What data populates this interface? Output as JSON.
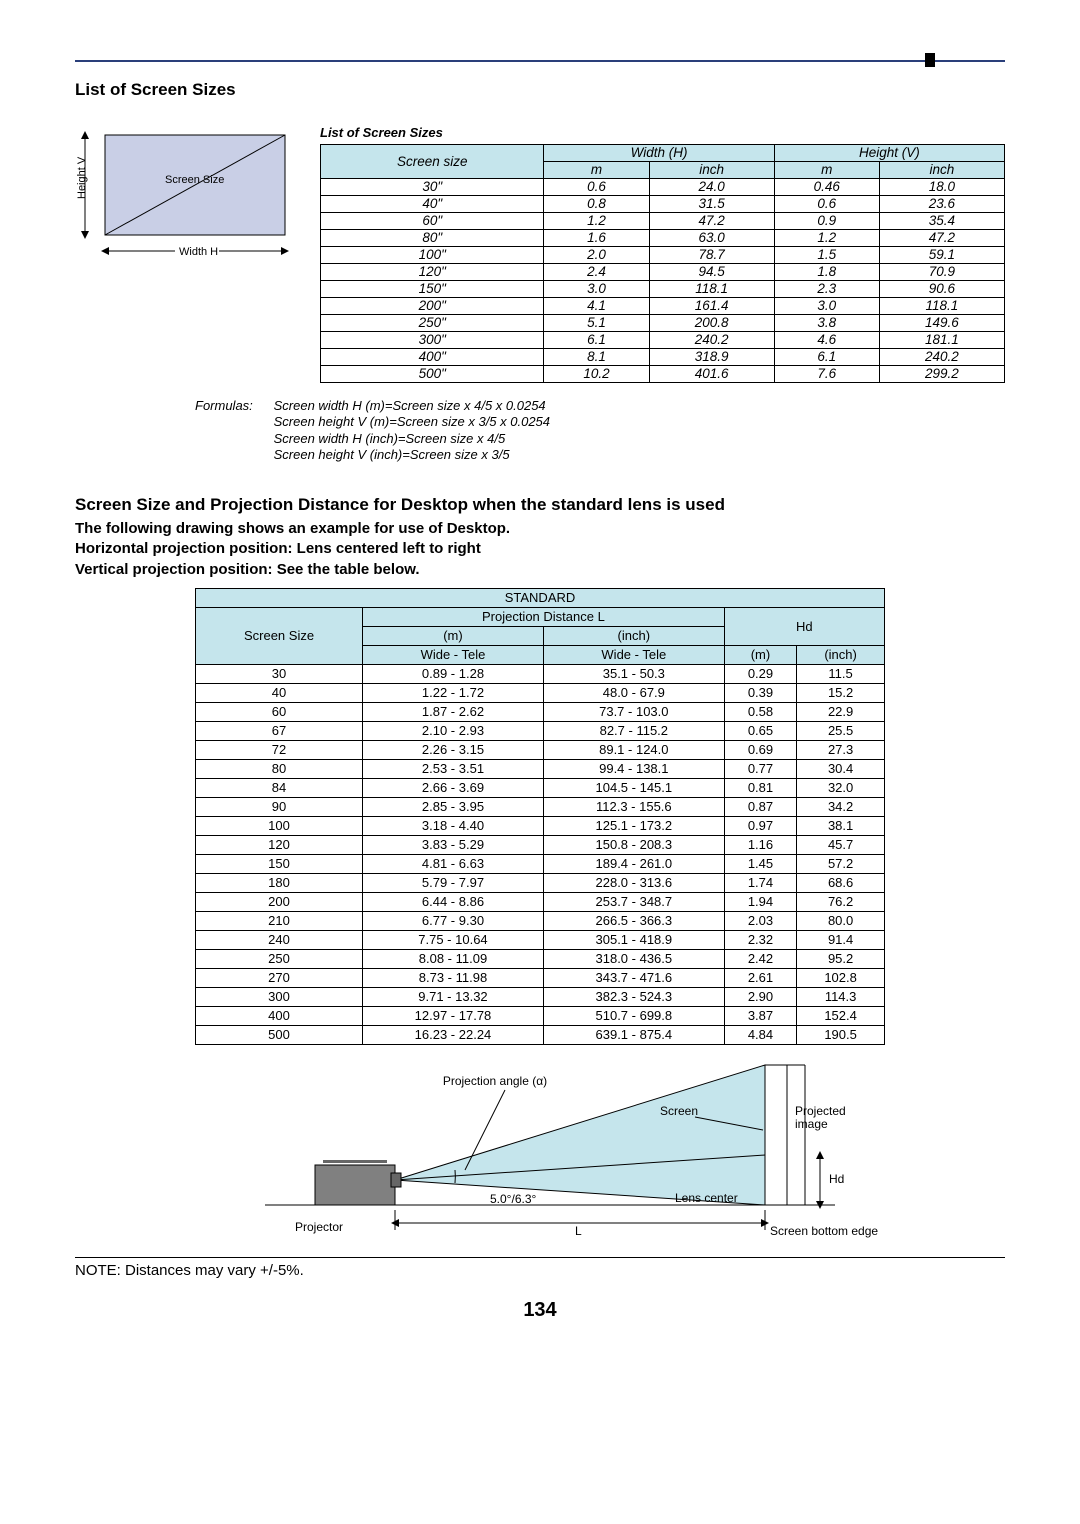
{
  "header_rule_color": "#2a3f7a",
  "section1_title": "List of Screen Sizes",
  "diagram1": {
    "height_label": "Height V",
    "size_label": "Screen Size",
    "width_label": "Width H"
  },
  "table1": {
    "title": "List of Screen Sizes",
    "header_bg": "#c5e5ec",
    "col_screen": "Screen size",
    "col_width": "Width (H)",
    "col_height": "Height (V)",
    "unit_m": "m",
    "unit_inch": "inch",
    "rows": [
      {
        "s": "30\"",
        "wm": "0.6",
        "wi": "24.0",
        "hm": "0.46",
        "hi": "18.0"
      },
      {
        "s": "40\"",
        "wm": "0.8",
        "wi": "31.5",
        "hm": "0.6",
        "hi": "23.6"
      },
      {
        "s": "60\"",
        "wm": "1.2",
        "wi": "47.2",
        "hm": "0.9",
        "hi": "35.4"
      },
      {
        "s": "80\"",
        "wm": "1.6",
        "wi": "63.0",
        "hm": "1.2",
        "hi": "47.2"
      },
      {
        "s": "100\"",
        "wm": "2.0",
        "wi": "78.7",
        "hm": "1.5",
        "hi": "59.1"
      },
      {
        "s": "120\"",
        "wm": "2.4",
        "wi": "94.5",
        "hm": "1.8",
        "hi": "70.9"
      },
      {
        "s": "150\"",
        "wm": "3.0",
        "wi": "118.1",
        "hm": "2.3",
        "hi": "90.6"
      },
      {
        "s": "200\"",
        "wm": "4.1",
        "wi": "161.4",
        "hm": "3.0",
        "hi": "118.1"
      },
      {
        "s": "250\"",
        "wm": "5.1",
        "wi": "200.8",
        "hm": "3.8",
        "hi": "149.6"
      },
      {
        "s": "300\"",
        "wm": "6.1",
        "wi": "240.2",
        "hm": "4.6",
        "hi": "181.1"
      },
      {
        "s": "400\"",
        "wm": "8.1",
        "wi": "318.9",
        "hm": "6.1",
        "hi": "240.2"
      },
      {
        "s": "500\"",
        "wm": "10.2",
        "wi": "401.6",
        "hm": "7.6",
        "hi": "299.2"
      }
    ]
  },
  "formulas": {
    "label": "Formulas:",
    "lines": [
      "Screen width H (m)=Screen size x 4/5 x 0.0254",
      "Screen height V (m)=Screen size x 3/5 x 0.0254",
      "Screen width H (inch)=Screen size x 4/5",
      "Screen height V (inch)=Screen size x 3/5"
    ]
  },
  "section2_title": "Screen Size and Projection Distance for Desktop when the standard lens is used",
  "section2_lines": [
    "The following drawing shows an example for use of Desktop.",
    "Horizontal projection position: Lens centered left to right",
    "Vertical projection position: See the table below."
  ],
  "table2": {
    "header_bg": "#c5e5ec",
    "top": "STANDARD",
    "col_s": "Screen Size",
    "col_pdl": "Projection Distance L",
    "col_h": "Hd",
    "sub_m": "(m)",
    "sub_inch": "(inch)",
    "wt": "Wide - Tele",
    "rows": [
      {
        "s": "30",
        "m1": "0.89 - 1.28",
        "m2": "35.1 - 50.3",
        "h1": "0.29",
        "h2": "11.5"
      },
      {
        "s": "40",
        "m1": "1.22 - 1.72",
        "m2": "48.0 - 67.9",
        "h1": "0.39",
        "h2": "15.2"
      },
      {
        "s": "60",
        "m1": "1.87 - 2.62",
        "m2": "73.7 - 103.0",
        "h1": "0.58",
        "h2": "22.9"
      },
      {
        "s": "67",
        "m1": "2.10 - 2.93",
        "m2": "82.7 - 115.2",
        "h1": "0.65",
        "h2": "25.5"
      },
      {
        "s": "72",
        "m1": "2.26 - 3.15",
        "m2": "89.1 - 124.0",
        "h1": "0.69",
        "h2": "27.3"
      },
      {
        "s": "80",
        "m1": "2.53 - 3.51",
        "m2": "99.4 - 138.1",
        "h1": "0.77",
        "h2": "30.4"
      },
      {
        "s": "84",
        "m1": "2.66 - 3.69",
        "m2": "104.5 - 145.1",
        "h1": "0.81",
        "h2": "32.0"
      },
      {
        "s": "90",
        "m1": "2.85 - 3.95",
        "m2": "112.3 - 155.6",
        "h1": "0.87",
        "h2": "34.2"
      },
      {
        "s": "100",
        "m1": "3.18 - 4.40",
        "m2": "125.1 - 173.2",
        "h1": "0.97",
        "h2": "38.1"
      },
      {
        "s": "120",
        "m1": "3.83 - 5.29",
        "m2": "150.8 - 208.3",
        "h1": "1.16",
        "h2": "45.7"
      },
      {
        "s": "150",
        "m1": "4.81 - 6.63",
        "m2": "189.4 - 261.0",
        "h1": "1.45",
        "h2": "57.2"
      },
      {
        "s": "180",
        "m1": "5.79 - 7.97",
        "m2": "228.0 - 313.6",
        "h1": "1.74",
        "h2": "68.6"
      },
      {
        "s": "200",
        "m1": "6.44 - 8.86",
        "m2": "253.7 - 348.7",
        "h1": "1.94",
        "h2": "76.2"
      },
      {
        "s": "210",
        "m1": "6.77 - 9.30",
        "m2": "266.5 - 366.3",
        "h1": "2.03",
        "h2": "80.0"
      },
      {
        "s": "240",
        "m1": "7.75 - 10.64",
        "m2": "305.1 - 418.9",
        "h1": "2.32",
        "h2": "91.4"
      },
      {
        "s": "250",
        "m1": "8.08 - 11.09",
        "m2": "318.0 - 436.5",
        "h1": "2.42",
        "h2": "95.2"
      },
      {
        "s": "270",
        "m1": "8.73 - 11.98",
        "m2": "343.7 - 471.6",
        "h1": "2.61",
        "h2": "102.8"
      },
      {
        "s": "300",
        "m1": "9.71 - 13.32",
        "m2": "382.3 - 524.3",
        "h1": "2.90",
        "h2": "114.3"
      },
      {
        "s": "400",
        "m1": "12.97 - 17.78",
        "m2": "510.7 - 699.8",
        "h1": "3.87",
        "h2": "152.4"
      },
      {
        "s": "500",
        "m1": "16.23 - 22.24",
        "m2": "639.1 - 875.4",
        "h1": "4.84",
        "h2": "190.5"
      }
    ]
  },
  "diagram2": {
    "pav_label": "Projection angle (α)",
    "screen_label": "Screen",
    "phd_label": "Projected image",
    "hd_label": "Hd",
    "angle_label": "5.0°/6.3°",
    "lens_label": "Lens center",
    "projector_label": "Projector",
    "L_label": "L",
    "bottom_label": "Screen bottom edge"
  },
  "note": "NOTE: Distances may vary +/-5%.",
  "page": "134"
}
